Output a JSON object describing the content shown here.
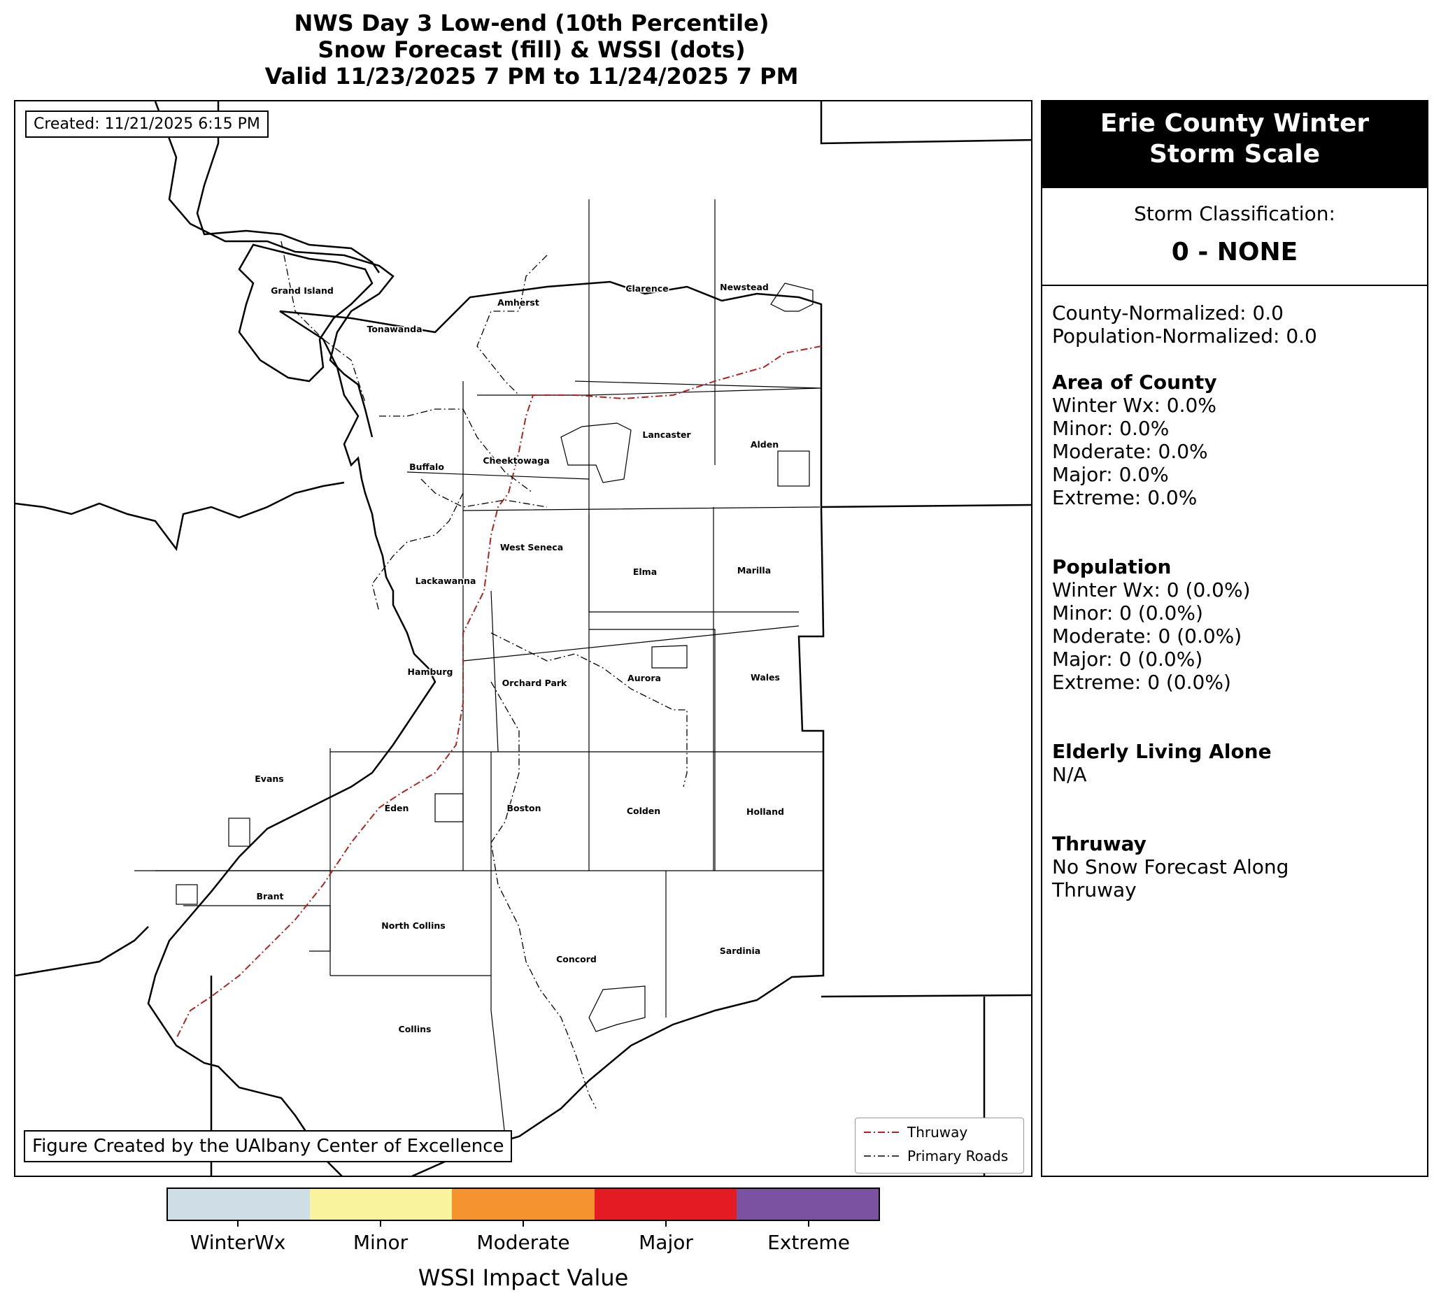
{
  "title": {
    "line1": "NWS Day 3 Low-end (10th Percentile)",
    "line2": "Snow Forecast (fill) & WSSI (dots)",
    "line3": "Valid 11/23/2025 7 PM to 11/24/2025 7 PM"
  },
  "map": {
    "created": "Created: 11/21/2025 6:15 PM",
    "credit": "Figure Created by the UAlbany Center of Excellence",
    "towns": [
      "Grand Island",
      "Tonawanda",
      "Amherst",
      "Clarence",
      "Newstead",
      "Buffalo",
      "Cheektowaga",
      "Lancaster",
      "Alden",
      "West Seneca",
      "Elma",
      "Marilla",
      "Lackawanna",
      "Hamburg",
      "Orchard Park",
      "Aurora",
      "Wales",
      "Evans",
      "Eden",
      "Boston",
      "Colden",
      "Holland",
      "Brant",
      "North Collins",
      "Concord",
      "Sardinia",
      "Collins"
    ],
    "legend": {
      "thruway": "Thruway",
      "primary_roads": "Primary Roads",
      "thruway_color": "#b22222",
      "roads_color": "#000000"
    }
  },
  "panel": {
    "header": [
      "Erie County Winter",
      "Storm Scale"
    ],
    "classification_label": "Storm Classification:",
    "classification_value": "0 - NONE",
    "county_normalized": "County-Normalized: 0.0",
    "population_normalized": "Population-Normalized: 0.0",
    "area": {
      "heading": "Area of County",
      "lines": [
        "Winter Wx: 0.0%",
        "Minor: 0.0%",
        "Moderate: 0.0%",
        "Major: 0.0%",
        "Extreme: 0.0%"
      ]
    },
    "population": {
      "heading": "Population",
      "lines": [
        "Winter Wx: 0 (0.0%)",
        "Minor: 0 (0.0%)",
        "Moderate: 0 (0.0%)",
        "Major: 0 (0.0%)",
        "Extreme: 0 (0.0%)"
      ]
    },
    "elderly": {
      "heading": "Elderly Living Alone",
      "value": "N/A"
    },
    "thruway": {
      "heading": "Thruway",
      "lines": [
        "No Snow Forecast Along",
        "Thruway"
      ]
    }
  },
  "colorbar": {
    "label": "WSSI Impact Value",
    "categories": [
      {
        "name": "WinterWx",
        "color": "#cfdde6"
      },
      {
        "name": "Minor",
        "color": "#f8f39c"
      },
      {
        "name": "Moderate",
        "color": "#f5932f"
      },
      {
        "name": "Major",
        "color": "#e41b23"
      },
      {
        "name": "Extreme",
        "color": "#7a52a1"
      }
    ]
  }
}
